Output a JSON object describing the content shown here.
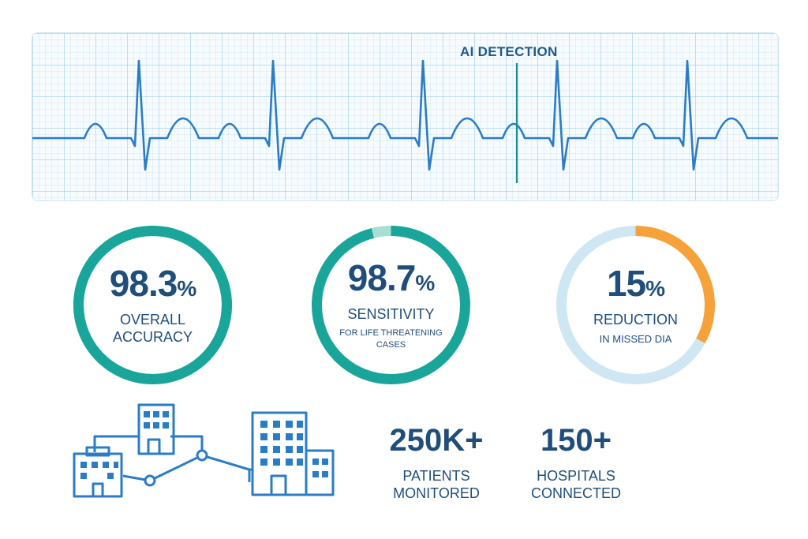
{
  "ecg": {
    "label": "AI DETECTION",
    "line_color": "#2a7cc7",
    "marker_color": "#1b8c8c"
  },
  "metrics": [
    {
      "value": "98.3",
      "unit": "%",
      "label_lines": [
        "OVERALL",
        "ACCURACY"
      ],
      "sub_lines": [],
      "progress": 1.0,
      "track_color": "#1aa59a",
      "accent_color": "#1aa59a"
    },
    {
      "value": "98.7",
      "unit": "%",
      "label_lines": [
        "SENSITIVITY"
      ],
      "sub_lines": [
        "FOR LIFE THREATENING",
        "CASES"
      ],
      "progress": 0.96,
      "track_color": "#a8ded6",
      "accent_color": "#1aa59a"
    },
    {
      "value": "15",
      "unit": "%",
      "label_lines": [
        "REDUCTION"
      ],
      "sub_lines": [
        "IN MISSED DIA"
      ],
      "progress": 0.33,
      "track_color": "#cfe6f3",
      "accent_color": "#f5a23a"
    }
  ],
  "stats": [
    {
      "number": "250K+",
      "label_lines": [
        "PATIENTS",
        "MONITORED"
      ]
    },
    {
      "number": "150+",
      "label_lines": [
        "HOSPITALS",
        "CONNECTED"
      ]
    }
  ],
  "colors": {
    "text": "#1f4e7a",
    "icon": "#2a7cc7"
  },
  "icons": [
    "hospital-network-icon"
  ]
}
